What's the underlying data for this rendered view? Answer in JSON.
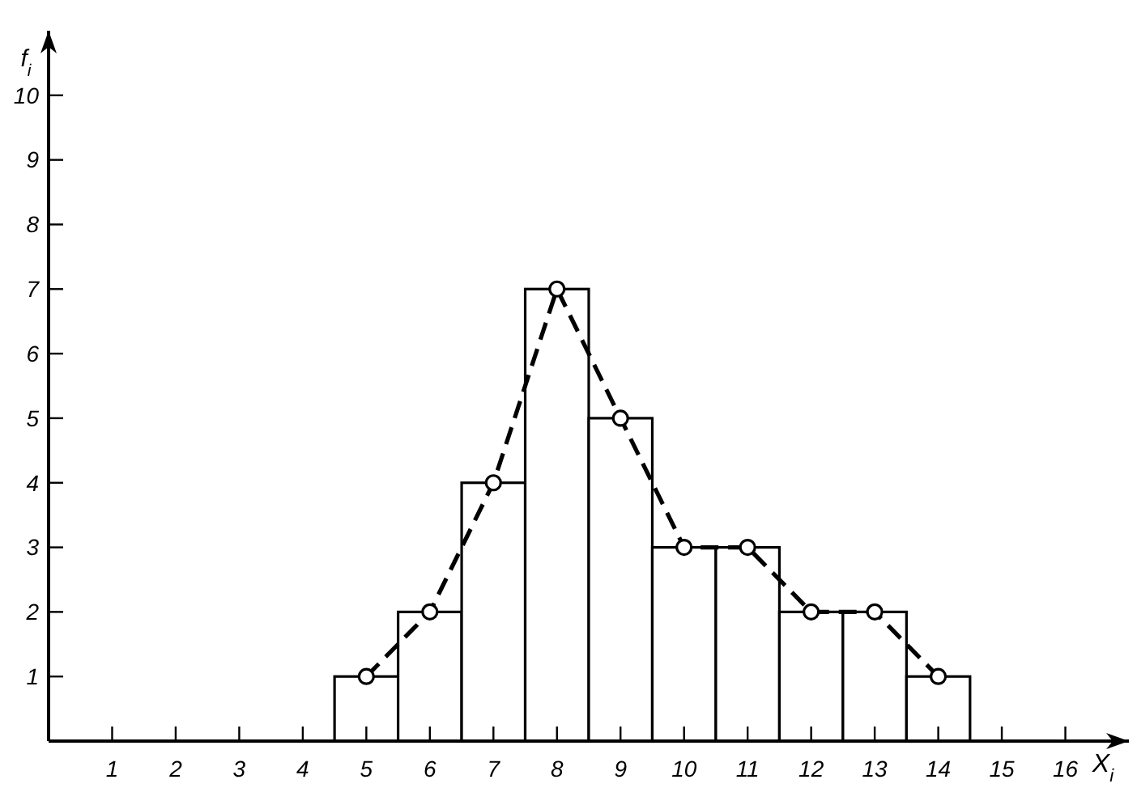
{
  "chart_data": {
    "type": "histogram",
    "xlabel": "X$_{i}$",
    "ylabel": "f$_{i}$",
    "xlim": [
      0,
      17
    ],
    "xticks": [
      1,
      2,
      3,
      4,
      5,
      6,
      7,
      8,
      9,
      10,
      11,
      12,
      13,
      14,
      15,
      16
    ],
    "ylim": [
      0,
      11
    ],
    "yticks": [
      1,
      2,
      3,
      4,
      5,
      6,
      7,
      8,
      9,
      10
    ],
    "series": [
      {
        "color": "#ffffff",
        "bins": [
          4.5,
          5.5,
          6.5,
          7.5,
          8.5,
          9.5,
          10.5,
          11.5,
          12.5,
          13.5,
          14.5
        ],
        "values": [
          1,
          2,
          4,
          7,
          5,
          3,
          3,
          2,
          2,
          1
        ]
      },
      {
        "type": "line",
        "color": "#000000",
        "marker": "circle",
        "line_style": "dashed",
        "x": [
          5,
          6,
          7,
          8,
          9,
          10,
          11,
          12,
          13,
          14
        ],
        "values": [
          1,
          2,
          4,
          7,
          5,
          3,
          3,
          2,
          2,
          1
        ]
      }
    ]
  }
}
